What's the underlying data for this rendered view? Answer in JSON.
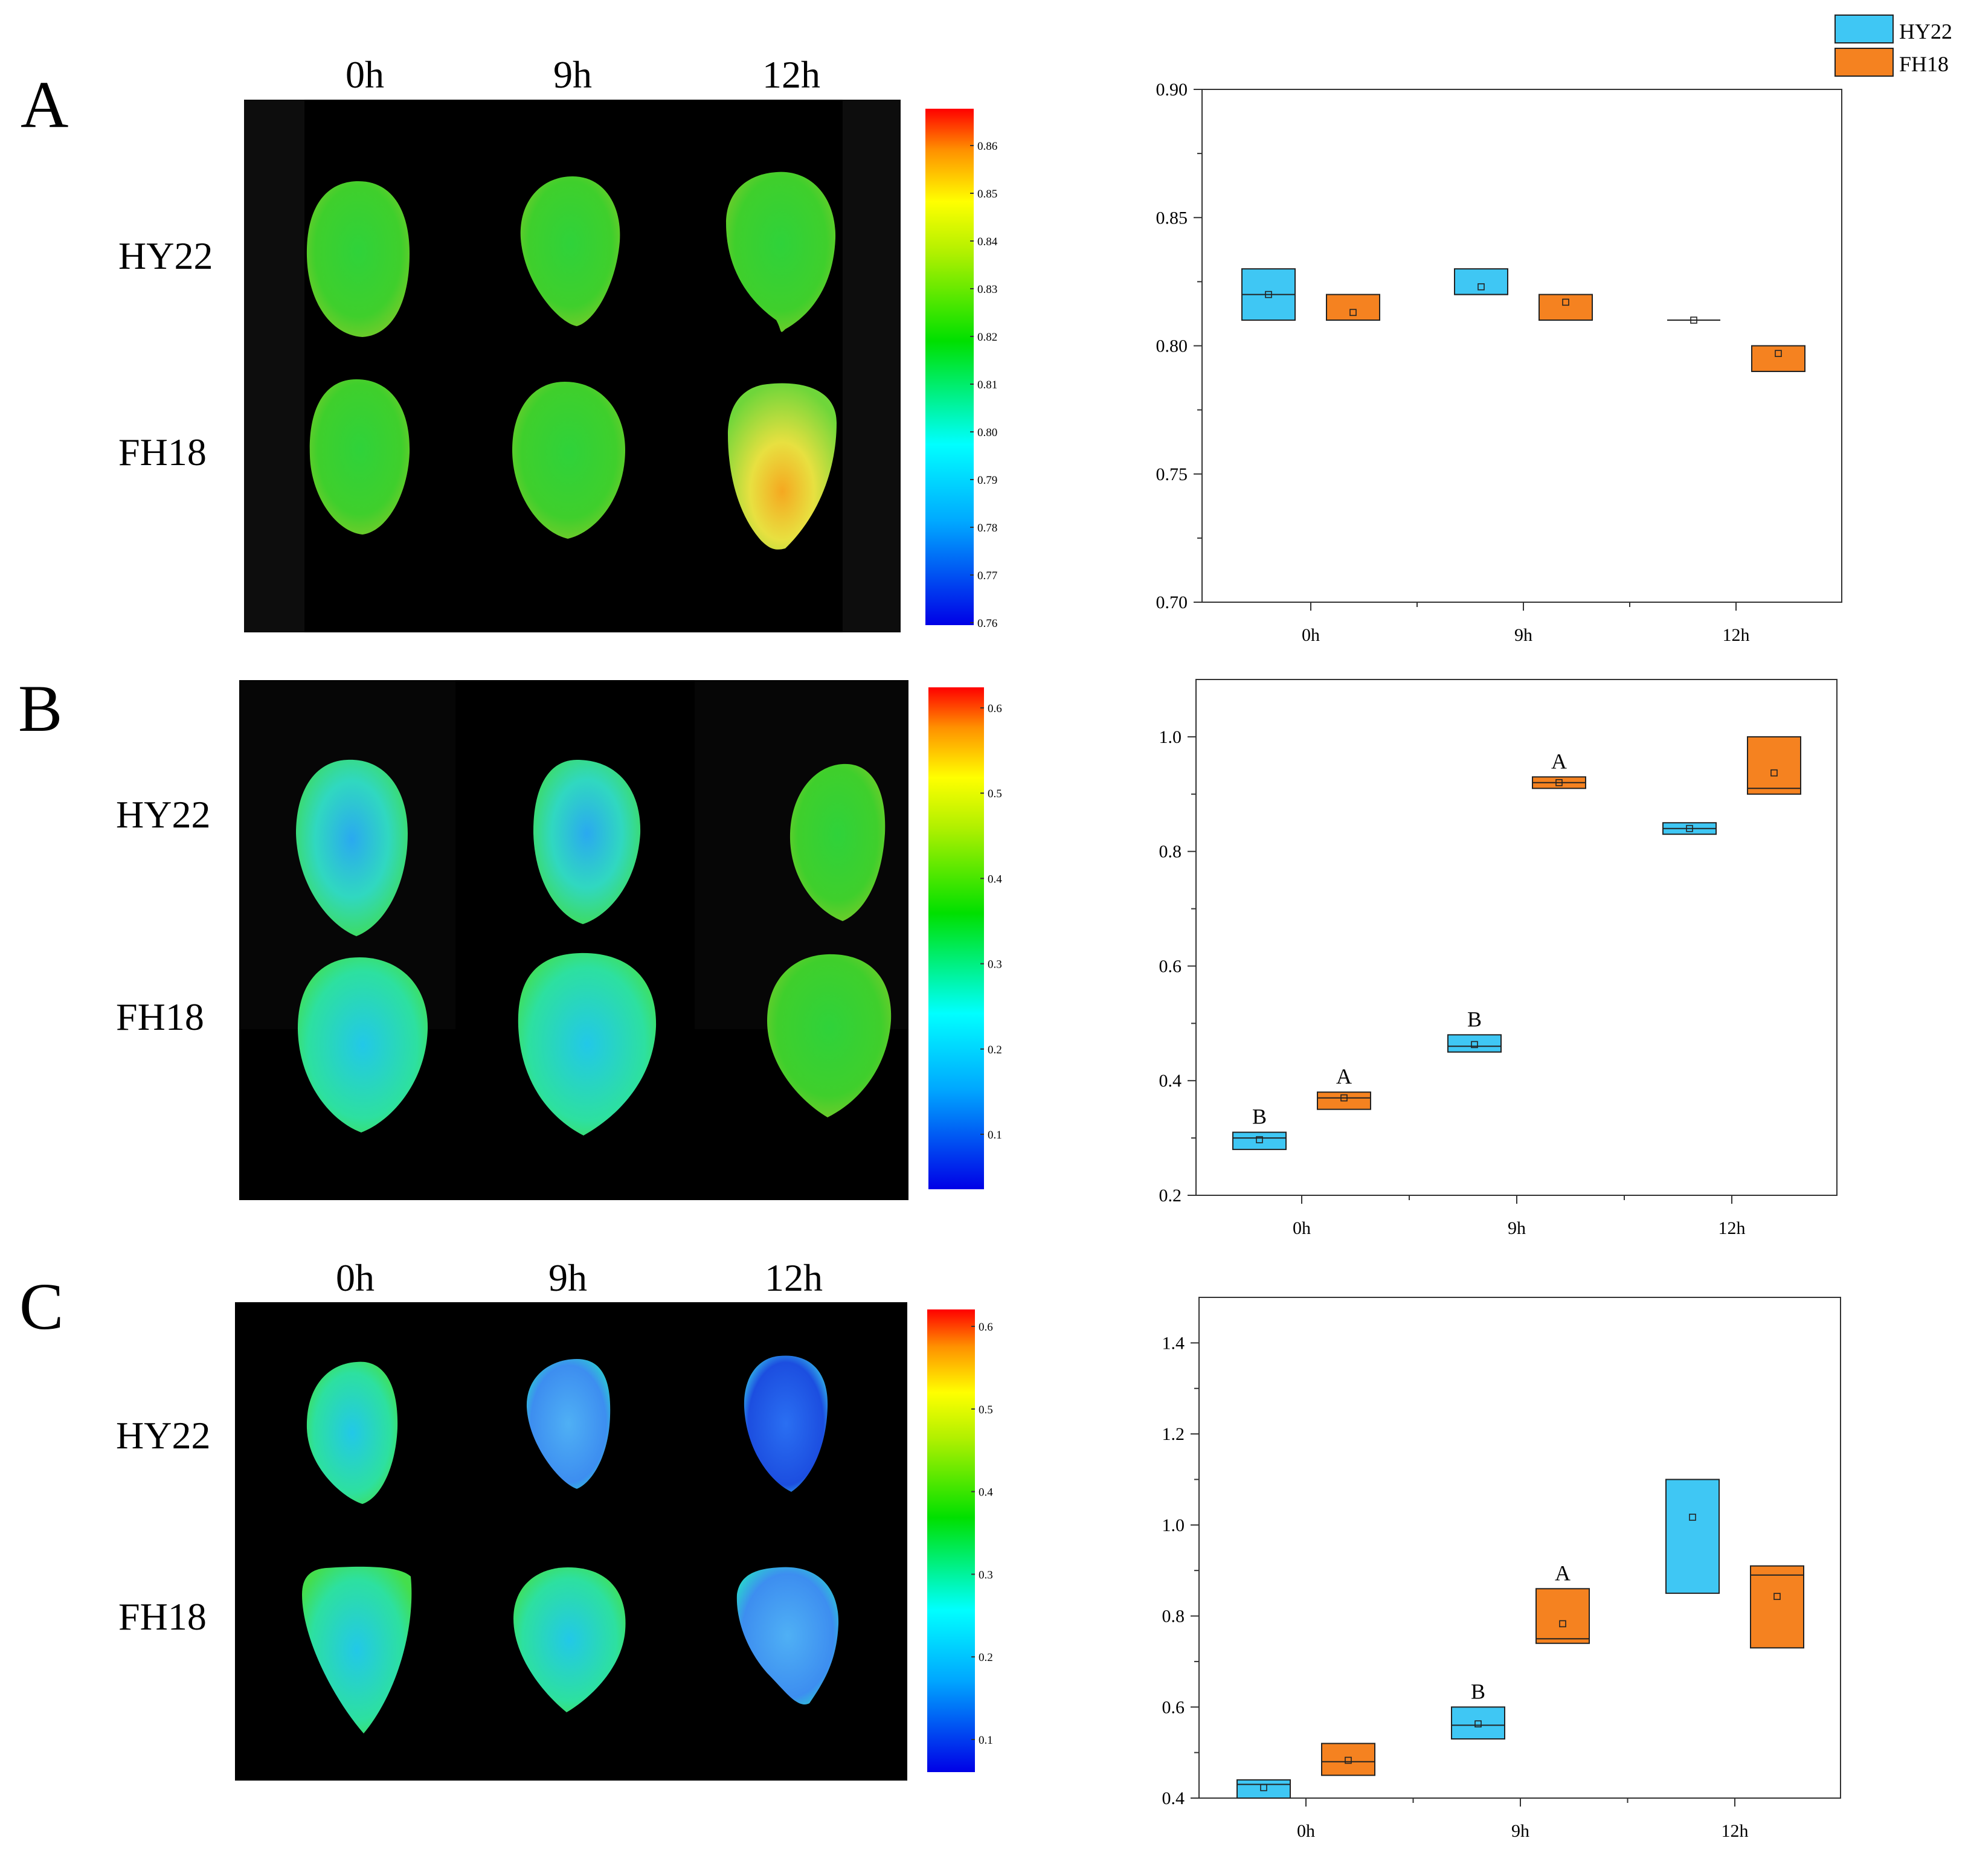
{
  "legend": {
    "hy22": {
      "label": "HY22",
      "color": "#3fc7f4"
    },
    "fh18": {
      "label": "FH18",
      "color": "#f58220"
    }
  },
  "panels": [
    {
      "letter": "A",
      "columns": [
        "0h",
        "9h",
        "12h"
      ],
      "rows": [
        "HY22",
        "FH18"
      ],
      "colorbar_ticks": [
        "0.86",
        "0.85",
        "0.84",
        "0.83",
        "0.82",
        "0.81",
        "0.80",
        "0.79",
        "0.78",
        "0.77",
        "0.76"
      ]
    },
    {
      "letter": "B",
      "columns": [],
      "rows": [
        "HY22",
        "FH18"
      ],
      "colorbar_ticks": [
        "0.6",
        "0.5",
        "0.4",
        "0.3",
        "0.2",
        "0.1"
      ]
    },
    {
      "letter": "C",
      "columns": [
        "0h",
        "9h",
        "12h"
      ],
      "rows": [
        "HY22",
        "FH18"
      ],
      "colorbar_ticks": [
        "0.6",
        "0.5",
        "0.4",
        "0.3",
        "0.2",
        "0.1"
      ]
    }
  ],
  "chart_data": [
    {
      "type": "box",
      "panel": "A",
      "categories": [
        "0h",
        "9h",
        "12h"
      ],
      "ylim": [
        0.7,
        0.9
      ],
      "yticks": [
        "0.70",
        "0.75",
        "0.80",
        "0.85",
        "0.90"
      ],
      "series": [
        {
          "name": "HY22",
          "boxes": [
            {
              "low": 0.81,
              "high": 0.83,
              "median": 0.82,
              "mean": 0.82,
              "label": ""
            },
            {
              "low": 0.82,
              "high": 0.83,
              "median": 0.82,
              "mean": 0.823,
              "label": ""
            },
            {
              "low": 0.81,
              "high": 0.81,
              "median": 0.81,
              "mean": 0.81,
              "label": ""
            }
          ]
        },
        {
          "name": "FH18",
          "boxes": [
            {
              "low": 0.81,
              "high": 0.82,
              "median": 0.81,
              "mean": 0.813,
              "label": ""
            },
            {
              "low": 0.81,
              "high": 0.82,
              "median": 0.81,
              "mean": 0.817,
              "label": ""
            },
            {
              "low": 0.79,
              "high": 0.8,
              "median": 0.79,
              "mean": 0.797,
              "label": ""
            }
          ]
        }
      ]
    },
    {
      "type": "box",
      "panel": "B",
      "categories": [
        "0h",
        "9h",
        "12h"
      ],
      "ylim": [
        0.2,
        1.1
      ],
      "yticks": [
        "0.2",
        "0.4",
        "0.6",
        "0.8",
        "1.0"
      ],
      "series": [
        {
          "name": "HY22",
          "boxes": [
            {
              "low": 0.28,
              "high": 0.31,
              "median": 0.3,
              "mean": 0.297,
              "label": "B"
            },
            {
              "low": 0.45,
              "high": 0.48,
              "median": 0.46,
              "mean": 0.463,
              "label": "B"
            },
            {
              "low": 0.83,
              "high": 0.85,
              "median": 0.84,
              "mean": 0.84,
              "label": ""
            }
          ]
        },
        {
          "name": "FH18",
          "boxes": [
            {
              "low": 0.35,
              "high": 0.38,
              "median": 0.37,
              "mean": 0.37,
              "label": "A"
            },
            {
              "low": 0.91,
              "high": 0.93,
              "median": 0.92,
              "mean": 0.92,
              "label": "A"
            },
            {
              "low": 0.9,
              "high": 1.0,
              "median": 0.91,
              "mean": 0.937,
              "label": ""
            }
          ]
        }
      ]
    },
    {
      "type": "box",
      "panel": "C",
      "categories": [
        "0h",
        "9h",
        "12h"
      ],
      "ylim": [
        0.4,
        1.5
      ],
      "yticks": [
        "0.4",
        "0.6",
        "0.8",
        "1.0",
        "1.2",
        "1.4"
      ],
      "series": [
        {
          "name": "HY22",
          "boxes": [
            {
              "low": 0.4,
              "high": 0.44,
              "median": 0.43,
              "mean": 0.423,
              "label": ""
            },
            {
              "low": 0.53,
              "high": 0.6,
              "median": 0.56,
              "mean": 0.563,
              "label": "B"
            },
            {
              "low": 0.85,
              "high": 1.1,
              "median": 1.1,
              "mean": 1.017,
              "label": ""
            }
          ]
        },
        {
          "name": "FH18",
          "boxes": [
            {
              "low": 0.45,
              "high": 0.52,
              "median": 0.48,
              "mean": 0.483,
              "label": ""
            },
            {
              "low": 0.74,
              "high": 0.86,
              "median": 0.75,
              "mean": 0.783,
              "label": "A"
            },
            {
              "low": 0.73,
              "high": 0.91,
              "median": 0.89,
              "mean": 0.843,
              "label": ""
            }
          ]
        }
      ]
    }
  ]
}
